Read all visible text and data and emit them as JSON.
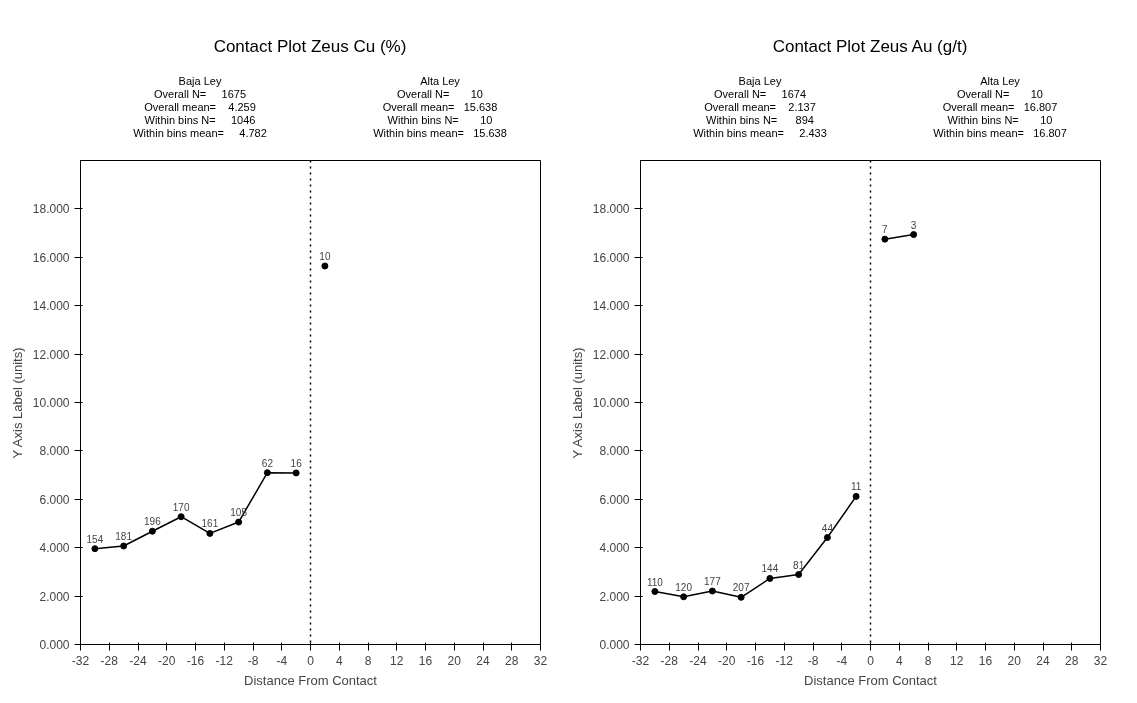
{
  "chart_data": [
    {
      "type": "line",
      "title": "Contact Plot Zeus Cu (%)",
      "xlabel": "Distance From Contact",
      "ylabel": "Y Axis Label (units)",
      "annotations": [
        "Baja Ley\nOverall N=     1675\nOverall mean=    4.259\nWithin bins N=     1046\nWithin bins mean=     4.782",
        "Alta Ley\nOverall N=       10\nOverall mean=   15.638\nWithin bins N=       10\nWithin bins mean=   15.638",
        {
          "text": "154",
          "x": -30,
          "y": 3.96
        },
        {
          "text": "181",
          "x": -26,
          "y": 4.07
        },
        {
          "text": "196",
          "x": -22,
          "y": 4.68
        },
        {
          "text": "170",
          "x": -18,
          "y": 5.28
        },
        {
          "text": "161",
          "x": -14,
          "y": 4.59
        },
        {
          "text": "105",
          "x": -10,
          "y": 5.06
        },
        {
          "text": "62",
          "x": -6,
          "y": 7.1
        },
        {
          "text": "16",
          "x": -2,
          "y": 7.09
        },
        {
          "text": "10",
          "x": 2,
          "y": 15.64
        }
      ],
      "xlim": [
        -32,
        32
      ],
      "xticks": [
        -32,
        -28,
        -24,
        -20,
        -16,
        -12,
        -8,
        -4,
        0,
        4,
        8,
        12,
        16,
        20,
        24,
        28,
        32
      ],
      "ylim": [
        0,
        20
      ],
      "yticks": [
        {
          "value": 0,
          "label": "0.000"
        },
        {
          "value": 2,
          "label": "2.000"
        },
        {
          "value": 4,
          "label": "4.000"
        },
        {
          "value": 6,
          "label": "6.000"
        },
        {
          "value": 8,
          "label": "8.000"
        },
        {
          "value": 10,
          "label": "10.000"
        },
        {
          "value": 12,
          "label": "12.000"
        },
        {
          "value": 14,
          "label": "14.000"
        },
        {
          "value": 16,
          "label": "16.000"
        },
        {
          "value": 18,
          "label": "18.000"
        }
      ],
      "marker": "circle",
      "line_style": "solid",
      "grid": false,
      "ref_lines": [
        {
          "axis": "x",
          "value": 0,
          "line_style": "dotted",
          "color": "#000000"
        }
      ],
      "series": [
        {
          "color": "#000000",
          "x": [
            -30,
            -26,
            -22,
            -18,
            -14,
            -10,
            -6,
            -2
          ],
          "values": [
            3.96,
            4.07,
            4.68,
            5.28,
            4.59,
            5.06,
            7.1,
            7.09
          ]
        },
        {
          "color": "#000000",
          "x": [
            2
          ],
          "values": [
            15.64
          ]
        }
      ]
    },
    {
      "type": "line",
      "title": "Contact Plot Zeus Au (g/t)",
      "xlabel": "Distance From Contact",
      "ylabel": "Y Axis Label (units)",
      "annotations": [
        "Baja Ley\nOverall N=     1674\nOverall mean=    2.137\nWithin bins N=      894\nWithin bins mean=     2.433",
        "Alta Ley\nOverall N=       10\nOverall mean=   16.807\nWithin bins N=       10\nWithin bins mean=   16.807",
        {
          "text": "110",
          "x": -30,
          "y": 2.19
        },
        {
          "text": "120",
          "x": -26,
          "y": 1.97
        },
        {
          "text": "177",
          "x": -22,
          "y": 2.21
        },
        {
          "text": "207",
          "x": -18,
          "y": 1.95
        },
        {
          "text": "144",
          "x": -14,
          "y": 2.73
        },
        {
          "text": "81",
          "x": -10,
          "y": 2.89
        },
        {
          "text": "44",
          "x": -6,
          "y": 4.42
        },
        {
          "text": "11",
          "x": -2,
          "y": 6.12
        },
        {
          "text": "7",
          "x": 2,
          "y": 16.75
        },
        {
          "text": "3",
          "x": 6,
          "y": 16.94
        }
      ],
      "xlim": [
        -32,
        32
      ],
      "xticks": [
        -32,
        -28,
        -24,
        -20,
        -16,
        -12,
        -8,
        -4,
        0,
        4,
        8,
        12,
        16,
        20,
        24,
        28,
        32
      ],
      "ylim": [
        0,
        20
      ],
      "yticks": [
        {
          "value": 0,
          "label": "0.000"
        },
        {
          "value": 2,
          "label": "2.000"
        },
        {
          "value": 4,
          "label": "4.000"
        },
        {
          "value": 6,
          "label": "6.000"
        },
        {
          "value": 8,
          "label": "8.000"
        },
        {
          "value": 10,
          "label": "10.000"
        },
        {
          "value": 12,
          "label": "12.000"
        },
        {
          "value": 14,
          "label": "14.000"
        },
        {
          "value": 16,
          "label": "16.000"
        },
        {
          "value": 18,
          "label": "18.000"
        }
      ],
      "marker": "circle",
      "line_style": "solid",
      "grid": false,
      "ref_lines": [
        {
          "axis": "x",
          "value": 0,
          "line_style": "dotted",
          "color": "#000000"
        }
      ],
      "series": [
        {
          "color": "#000000",
          "x": [
            -30,
            -26,
            -22,
            -18,
            -14,
            -10,
            -6,
            -2
          ],
          "values": [
            2.19,
            1.97,
            2.21,
            1.95,
            2.73,
            2.89,
            4.42,
            6.12
          ]
        },
        {
          "color": "#000000",
          "x": [
            2,
            6
          ],
          "values": [
            16.75,
            16.94
          ]
        }
      ]
    }
  ]
}
